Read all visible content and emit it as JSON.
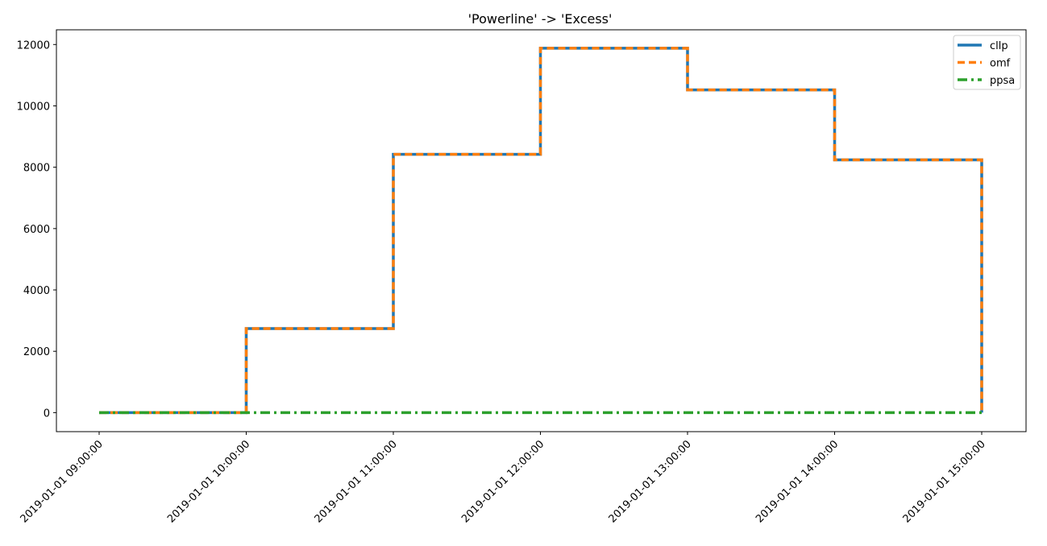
{
  "chart_data": {
    "type": "line",
    "title": "'Powerline' -> 'Excess'",
    "xlabel": "",
    "ylabel": "",
    "x": [
      "2019-01-01 09:00:00",
      "2019-01-01 10:00:00",
      "2019-01-01 11:00:00",
      "2019-01-01 12:00:00",
      "2019-01-01 13:00:00",
      "2019-01-01 14:00:00",
      "2019-01-01 15:00:00"
    ],
    "x_ticks": [
      "2019-01-01 09:00:00",
      "2019-01-01 10:00:00",
      "2019-01-01 11:00:00",
      "2019-01-01 12:00:00",
      "2019-01-01 13:00:00",
      "2019-01-01 14:00:00",
      "2019-01-01 15:00:00"
    ],
    "y_ticks": [
      0,
      2000,
      4000,
      6000,
      8000,
      10000,
      12000
    ],
    "ylim": [
      -620,
      12480
    ],
    "step": "post",
    "grid": false,
    "legend_position": "top-right",
    "series": [
      {
        "name": "cllp",
        "color": "#1f77b4",
        "linestyle": "solid",
        "values": [
          0,
          2740,
          8420,
          11880,
          10520,
          8240,
          0
        ]
      },
      {
        "name": "omf",
        "color": "#ff7f0e",
        "linestyle": "dashed",
        "values": [
          0,
          2740,
          8420,
          11880,
          10520,
          8240,
          0
        ]
      },
      {
        "name": "ppsa",
        "color": "#2ca02c",
        "linestyle": "dashdot",
        "values": [
          0,
          0,
          0,
          0,
          0,
          0,
          0
        ]
      }
    ]
  }
}
